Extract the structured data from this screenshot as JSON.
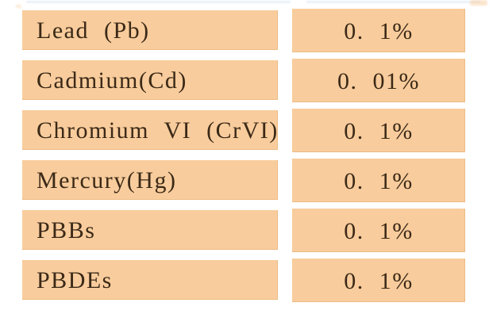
{
  "table": {
    "rows": [
      {
        "substance": "Lead (Pb)",
        "limit": "0. 1%"
      },
      {
        "substance": "Cadmium(Cd)",
        "limit": "0. 01%"
      },
      {
        "substance": "Chromium VI (CrVI)",
        "limit": "0. 1%"
      },
      {
        "substance": "Mercury(Hg)",
        "limit": "0. 1%"
      },
      {
        "substance": "PBBs",
        "limit": "0. 1%"
      },
      {
        "substance": "PBDEs",
        "limit": "0. 1%"
      }
    ]
  },
  "colors": {
    "bar": "#f8cc9c",
    "text": "#3b2917",
    "bg": "#ffffff",
    "remnant": "#dce9f7"
  }
}
